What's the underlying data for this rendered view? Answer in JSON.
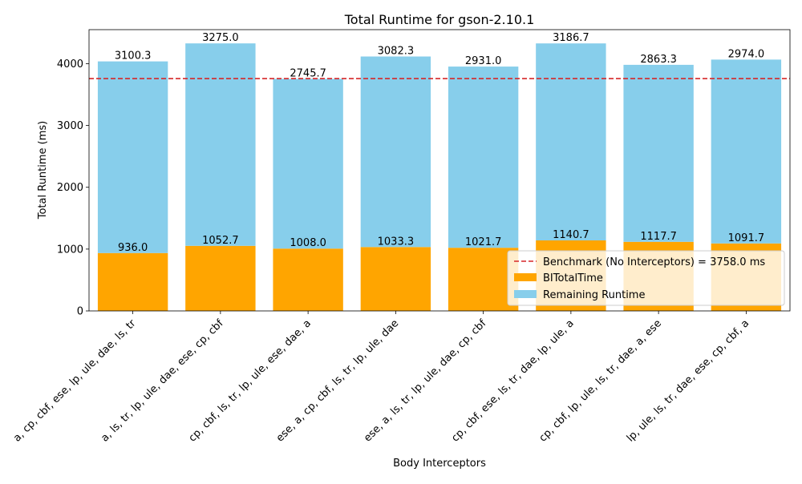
{
  "chart_data": {
    "type": "bar",
    "stacked": true,
    "title": "Total Runtime for gson-2.10.1",
    "xlabel": "Body Interceptors",
    "ylabel": "Total Runtime (ms)",
    "ylim": [
      0,
      4550
    ],
    "yticks": [
      0,
      1000,
      2000,
      3000,
      4000
    ],
    "grid": false,
    "legend_position": "lower right",
    "categories": [
      "a, cp, cbf, ese, lp, ule, dae, ls, tr",
      "a, ls, tr, lp, ule, dae, ese, cp, cbf",
      "cp, cbf, ls, tr, lp, ule, ese, dae, a",
      "ese, a, cp, cbf, ls, tr, lp, ule, dae",
      "ese, a, ls, tr, lp, ule, dae, cp, cbf",
      "cp, cbf, ese, ls, tr, dae, lp, ule, a",
      "cp, cbf, lp, ule, ls, tr, dae, a, ese",
      "lp, ule, ls, tr, dae, ese, cp, cbf, a"
    ],
    "series": [
      {
        "name": "BITotalTime",
        "color": "#ffa500",
        "values": [
          936.0,
          1052.7,
          1008.0,
          1033.3,
          1021.7,
          1140.7,
          1117.7,
          1091.7
        ],
        "labels": [
          "936.0",
          "1052.7",
          "1008.0",
          "1033.3",
          "1021.7",
          "1140.7",
          "1117.7",
          "1091.7"
        ]
      },
      {
        "name": "Remaining Runtime",
        "color": "#87ceeb",
        "values": [
          3100.3,
          3275.0,
          2745.7,
          3082.3,
          2931.0,
          3186.7,
          2863.3,
          2974.0
        ],
        "labels": [
          "3100.3",
          "3275.0",
          "2745.7",
          "3082.3",
          "2931.0",
          "3186.7",
          "2863.3",
          "2974.0"
        ]
      }
    ],
    "benchmark": {
      "value": 3758.0,
      "label": "Benchmark (No Interceptors) = 3758.0 ms",
      "color": "#d62728",
      "style": "dashed"
    }
  }
}
